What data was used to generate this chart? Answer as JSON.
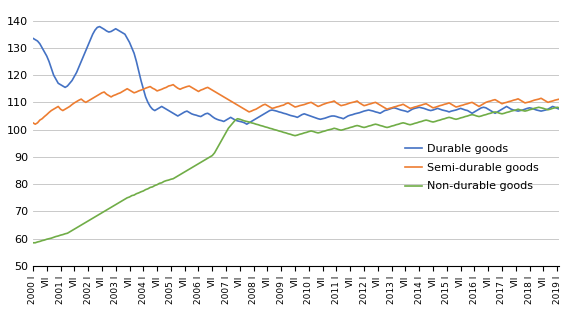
{
  "title": "",
  "ylabel": "",
  "xlabel": "",
  "ylim": [
    50,
    145
  ],
  "yticks": [
    50,
    60,
    70,
    80,
    90,
    100,
    110,
    120,
    130,
    140
  ],
  "background_color": "#ffffff",
  "grid_color": "#c0c0c0",
  "line_colors": {
    "durable": "#4472c4",
    "semi_durable": "#ed7d31",
    "non_durable": "#70ad47"
  },
  "legend_labels": [
    "Durable goods",
    "Semi-durable goods",
    "Non-durable goods"
  ],
  "tick_labels": [
    "2000 I",
    "VII",
    "2001 I",
    "VII",
    "2002 I",
    "VII",
    "2003 I",
    "VII",
    "2004 I",
    "VII",
    "2005 I",
    "VII",
    "2006 I",
    "VII",
    "2007 I",
    "VII",
    "2008 I",
    "VII",
    "2009 I",
    "VII",
    "2010 I",
    "VII",
    "2011 I",
    "VII",
    "2012 I",
    "VII",
    "2013 I",
    "VII",
    "2014 I",
    "VII",
    "2015 I",
    "VII",
    "2016 I",
    "VII",
    "2017 I",
    "VII",
    "2018 I",
    "VII",
    "2019 I"
  ],
  "durable_goods": [
    133.5,
    133.0,
    132.5,
    131.5,
    130.0,
    128.5,
    127.0,
    125.0,
    122.5,
    120.0,
    118.5,
    117.0,
    116.5,
    116.0,
    115.5,
    116.0,
    117.0,
    118.0,
    119.5,
    121.0,
    123.0,
    125.0,
    127.0,
    129.0,
    131.0,
    133.0,
    135.0,
    136.5,
    137.5,
    137.8,
    137.3,
    136.8,
    136.2,
    135.8,
    136.0,
    136.5,
    137.0,
    136.5,
    136.0,
    135.5,
    135.0,
    133.5,
    132.0,
    130.0,
    128.0,
    125.0,
    121.5,
    118.0,
    115.0,
    112.0,
    110.0,
    108.5,
    107.5,
    107.0,
    107.5,
    108.0,
    108.5,
    108.0,
    107.5,
    107.0,
    106.5,
    106.0,
    105.5,
    105.0,
    105.5,
    106.0,
    106.5,
    106.8,
    106.3,
    105.8,
    105.5,
    105.3,
    105.0,
    104.8,
    105.3,
    105.8,
    106.0,
    105.5,
    104.8,
    104.2,
    103.8,
    103.5,
    103.3,
    103.0,
    103.5,
    104.0,
    104.5,
    104.0,
    103.5,
    103.2,
    103.0,
    102.8,
    102.5,
    102.0,
    102.5,
    103.0,
    103.5,
    104.0,
    104.5,
    105.0,
    105.5,
    106.0,
    106.5,
    107.0,
    107.2,
    107.0,
    106.8,
    106.5,
    106.3,
    106.0,
    105.8,
    105.5,
    105.2,
    105.0,
    104.8,
    104.5,
    105.0,
    105.5,
    105.8,
    105.5,
    105.2,
    104.9,
    104.6,
    104.3,
    104.0,
    103.8,
    104.0,
    104.2,
    104.5,
    104.8,
    105.0,
    105.0,
    104.8,
    104.5,
    104.3,
    104.0,
    104.5,
    105.0,
    105.3,
    105.5,
    105.8,
    106.0,
    106.2,
    106.5,
    106.8,
    107.0,
    107.2,
    107.0,
    106.8,
    106.5,
    106.3,
    106.0,
    106.5,
    107.0,
    107.2,
    107.5,
    107.8,
    108.0,
    107.8,
    107.5,
    107.2,
    107.0,
    106.8,
    106.5,
    107.0,
    107.5,
    107.8,
    108.0,
    108.2,
    108.0,
    107.8,
    107.5,
    107.2,
    107.0,
    107.2,
    107.5,
    107.8,
    107.5,
    107.2,
    107.0,
    106.8,
    106.5,
    106.8,
    107.0,
    107.2,
    107.5,
    107.8,
    107.5,
    107.2,
    107.0,
    106.5,
    106.0,
    106.5,
    107.0,
    107.5,
    108.0,
    108.2,
    108.0,
    107.5,
    107.0,
    106.5,
    106.0,
    106.5,
    107.0,
    107.5,
    108.0,
    108.5,
    108.0,
    107.5,
    107.2,
    107.0,
    106.8,
    107.0,
    107.2,
    107.5,
    107.8,
    108.0,
    107.8,
    107.5,
    107.2,
    107.0,
    106.8,
    107.0,
    107.2,
    107.5,
    108.0,
    108.5,
    108.2,
    107.8,
    107.5
  ],
  "semi_durable_goods": [
    102.5,
    102.0,
    102.5,
    103.5,
    104.0,
    104.8,
    105.5,
    106.3,
    107.0,
    107.5,
    108.0,
    108.5,
    107.5,
    107.0,
    107.5,
    108.0,
    108.5,
    109.2,
    109.8,
    110.3,
    110.8,
    111.2,
    110.5,
    110.0,
    110.5,
    111.0,
    111.5,
    112.0,
    112.5,
    113.0,
    113.5,
    113.8,
    113.0,
    112.5,
    112.0,
    112.5,
    112.8,
    113.2,
    113.5,
    114.0,
    114.5,
    115.0,
    114.5,
    114.0,
    113.5,
    113.8,
    114.2,
    114.5,
    114.8,
    115.2,
    115.5,
    115.8,
    115.2,
    114.8,
    114.2,
    114.5,
    114.8,
    115.2,
    115.5,
    116.0,
    116.2,
    116.5,
    115.8,
    115.2,
    114.8,
    115.2,
    115.5,
    115.8,
    116.0,
    115.5,
    115.0,
    114.5,
    114.0,
    114.5,
    114.8,
    115.2,
    115.5,
    115.0,
    114.5,
    114.0,
    113.5,
    113.0,
    112.5,
    112.0,
    111.5,
    111.0,
    110.5,
    110.0,
    109.5,
    109.0,
    108.5,
    108.0,
    107.5,
    107.0,
    106.5,
    106.8,
    107.2,
    107.5,
    108.0,
    108.5,
    109.0,
    109.3,
    108.8,
    108.3,
    107.8,
    108.0,
    108.3,
    108.5,
    108.8,
    109.0,
    109.5,
    109.8,
    109.3,
    108.8,
    108.3,
    108.5,
    108.8,
    109.0,
    109.2,
    109.5,
    109.8,
    110.0,
    109.5,
    109.0,
    108.5,
    108.8,
    109.2,
    109.5,
    109.8,
    110.0,
    110.2,
    110.5,
    109.8,
    109.3,
    108.8,
    109.0,
    109.2,
    109.5,
    109.8,
    110.0,
    110.2,
    110.5,
    109.8,
    109.3,
    108.8,
    109.0,
    109.3,
    109.5,
    109.8,
    110.0,
    109.5,
    109.0,
    108.5,
    108.0,
    107.5,
    107.8,
    108.0,
    108.3,
    108.5,
    108.8,
    109.0,
    109.3,
    108.8,
    108.3,
    107.8,
    108.0,
    108.3,
    108.5,
    108.8,
    109.0,
    109.3,
    109.5,
    109.0,
    108.5,
    108.0,
    108.2,
    108.5,
    108.8,
    109.0,
    109.3,
    109.5,
    109.8,
    109.3,
    108.8,
    108.3,
    108.5,
    108.8,
    109.0,
    109.3,
    109.5,
    109.8,
    110.0,
    109.5,
    109.0,
    108.5,
    109.0,
    109.5,
    110.0,
    110.3,
    110.5,
    110.8,
    111.0,
    110.5,
    110.0,
    109.5,
    109.8,
    110.0,
    110.3,
    110.5,
    110.8,
    111.0,
    111.3,
    110.8,
    110.3,
    109.8,
    110.0,
    110.2,
    110.5,
    110.8,
    111.0,
    111.2,
    111.5,
    111.0,
    110.5,
    110.0,
    110.3,
    110.5,
    110.8,
    111.0,
    111.2
  ],
  "non_durable_goods": [
    58.5,
    58.5,
    58.8,
    59.0,
    59.3,
    59.5,
    59.8,
    60.0,
    60.2,
    60.5,
    60.8,
    61.0,
    61.3,
    61.5,
    61.8,
    62.0,
    62.5,
    63.0,
    63.5,
    64.0,
    64.5,
    65.0,
    65.5,
    66.0,
    66.5,
    67.0,
    67.5,
    68.0,
    68.5,
    69.0,
    69.5,
    70.0,
    70.5,
    71.0,
    71.5,
    72.0,
    72.5,
    73.0,
    73.5,
    74.0,
    74.5,
    75.0,
    75.3,
    75.8,
    76.0,
    76.5,
    76.8,
    77.2,
    77.5,
    78.0,
    78.3,
    78.8,
    79.0,
    79.5,
    79.8,
    80.3,
    80.5,
    81.0,
    81.3,
    81.5,
    81.8,
    82.0,
    82.5,
    83.0,
    83.5,
    84.0,
    84.5,
    85.0,
    85.5,
    86.0,
    86.5,
    87.0,
    87.5,
    88.0,
    88.5,
    89.0,
    89.5,
    90.0,
    90.5,
    91.5,
    93.0,
    94.5,
    96.0,
    97.5,
    99.0,
    100.5,
    101.5,
    102.5,
    103.5,
    104.0,
    103.8,
    103.5,
    103.2,
    103.0,
    102.8,
    102.5,
    102.3,
    102.0,
    101.8,
    101.5,
    101.3,
    101.0,
    100.8,
    100.5,
    100.3,
    100.0,
    99.8,
    99.5,
    99.3,
    99.0,
    98.8,
    98.5,
    98.3,
    98.0,
    97.8,
    98.0,
    98.3,
    98.5,
    98.8,
    99.0,
    99.3,
    99.5,
    99.3,
    99.0,
    98.8,
    99.0,
    99.3,
    99.5,
    99.8,
    100.0,
    100.2,
    100.5,
    100.3,
    100.0,
    99.8,
    100.0,
    100.3,
    100.5,
    100.8,
    101.0,
    101.3,
    101.5,
    101.3,
    101.0,
    100.8,
    101.0,
    101.3,
    101.5,
    101.8,
    102.0,
    101.8,
    101.5,
    101.3,
    101.0,
    100.8,
    101.0,
    101.3,
    101.5,
    101.8,
    102.0,
    102.3,
    102.5,
    102.3,
    102.0,
    101.8,
    102.0,
    102.3,
    102.5,
    102.8,
    103.0,
    103.3,
    103.5,
    103.3,
    103.0,
    102.8,
    103.0,
    103.3,
    103.5,
    103.8,
    104.0,
    104.3,
    104.5,
    104.3,
    104.0,
    103.8,
    104.0,
    104.3,
    104.5,
    104.8,
    105.0,
    105.3,
    105.5,
    105.3,
    105.0,
    104.8,
    105.0,
    105.3,
    105.5,
    105.8,
    106.0,
    106.3,
    106.5,
    106.3,
    106.0,
    105.8,
    106.0,
    106.3,
    106.5,
    106.8,
    107.0,
    107.2,
    107.5,
    107.2,
    107.0,
    106.8,
    107.0,
    107.3,
    107.5,
    107.8,
    108.0,
    108.2,
    108.0,
    107.8,
    107.5,
    107.3,
    107.5,
    107.8,
    108.0,
    108.2,
    108.0
  ]
}
